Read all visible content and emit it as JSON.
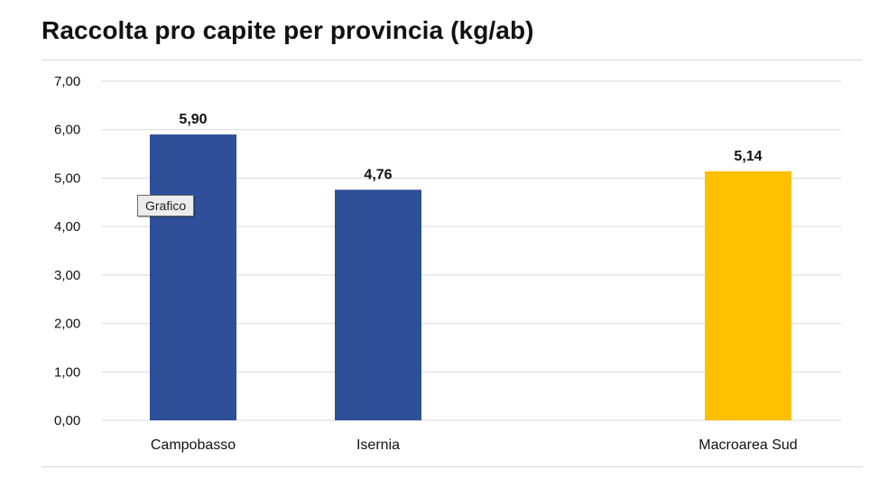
{
  "page": {
    "title": "Raccolta pro capite per provincia (kg/ab)",
    "tooltip": "Grafico"
  },
  "colors": {
    "province_bar": "#2f4f98",
    "macroarea_bar": "#ffc000",
    "gridline": "#d9d9d9"
  },
  "chart_data": {
    "type": "bar",
    "title": "Raccolta pro capite per provincia (kg/ab)",
    "xlabel": "",
    "ylabel": "",
    "ylim": [
      0,
      7
    ],
    "grid": true,
    "categories": [
      "Campobasso",
      "Isernia",
      "Macroarea Sud"
    ],
    "values": [
      5.9,
      4.76,
      5.14
    ],
    "value_labels": [
      "5,90",
      "4,76",
      "5,14"
    ],
    "bar_colors": [
      "#2f4f98",
      "#2f4f98",
      "#ffc000"
    ],
    "y_ticks": [
      "0,00",
      "1,00",
      "2,00",
      "3,00",
      "4,00",
      "5,00",
      "6,00",
      "7,00"
    ],
    "y_tick_values": [
      0,
      1,
      2,
      3,
      4,
      5,
      6,
      7
    ]
  }
}
